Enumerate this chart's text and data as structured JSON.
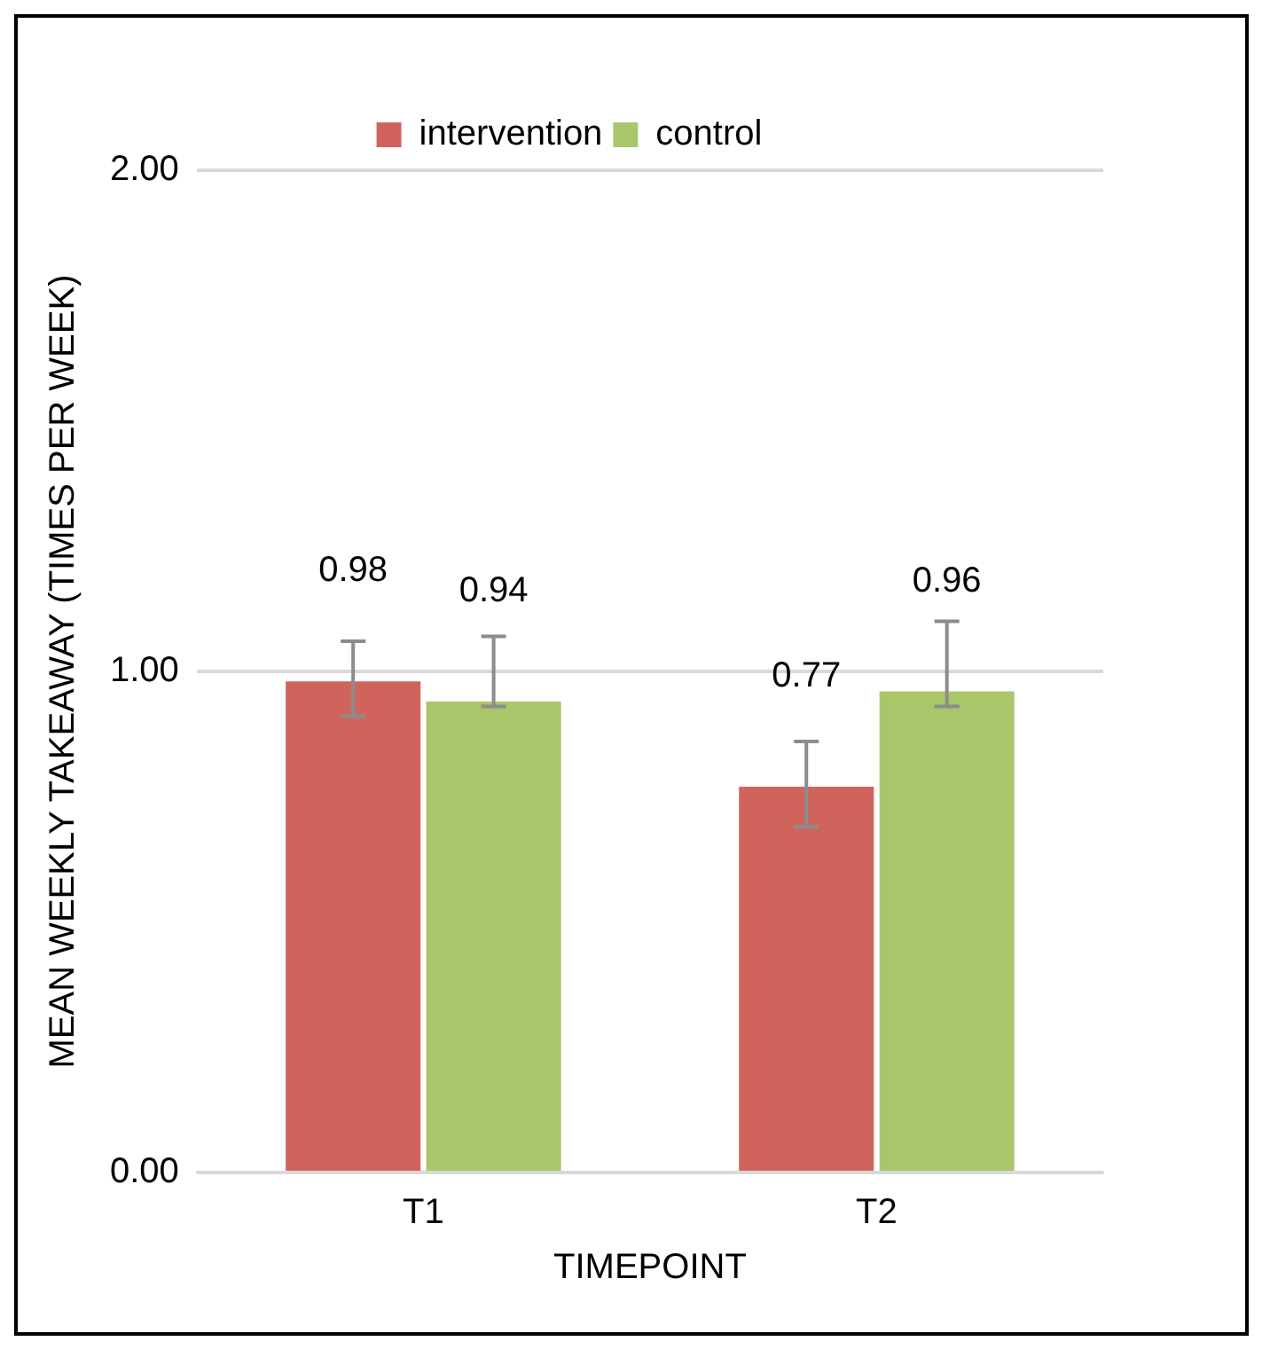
{
  "chart_data": {
    "type": "bar",
    "xlabel": "TIMEPOINT",
    "ylabel": "MEAN WEEKLY TAKEAWAY (TIMES PER WEEK)",
    "categories": [
      "T1",
      "T2"
    ],
    "series": [
      {
        "name": "intervention",
        "color": "#d0645c",
        "values": [
          0.98,
          0.77
        ],
        "errors": [
          [
            0.91,
            1.06
          ],
          [
            0.69,
            0.86
          ]
        ]
      },
      {
        "name": "control",
        "color": "#a9c66b",
        "values": [
          0.94,
          0.96
        ],
        "errors": [
          [
            0.93,
            1.07
          ],
          [
            0.93,
            1.1
          ]
        ]
      }
    ],
    "ylim": [
      0,
      2
    ],
    "yticks": [
      {
        "value": 0,
        "label": "0.00"
      },
      {
        "value": 1,
        "label": "1.00"
      },
      {
        "value": 2,
        "label": "2.00"
      }
    ],
    "grid": "y",
    "legend": "top",
    "data_labels": true
  }
}
